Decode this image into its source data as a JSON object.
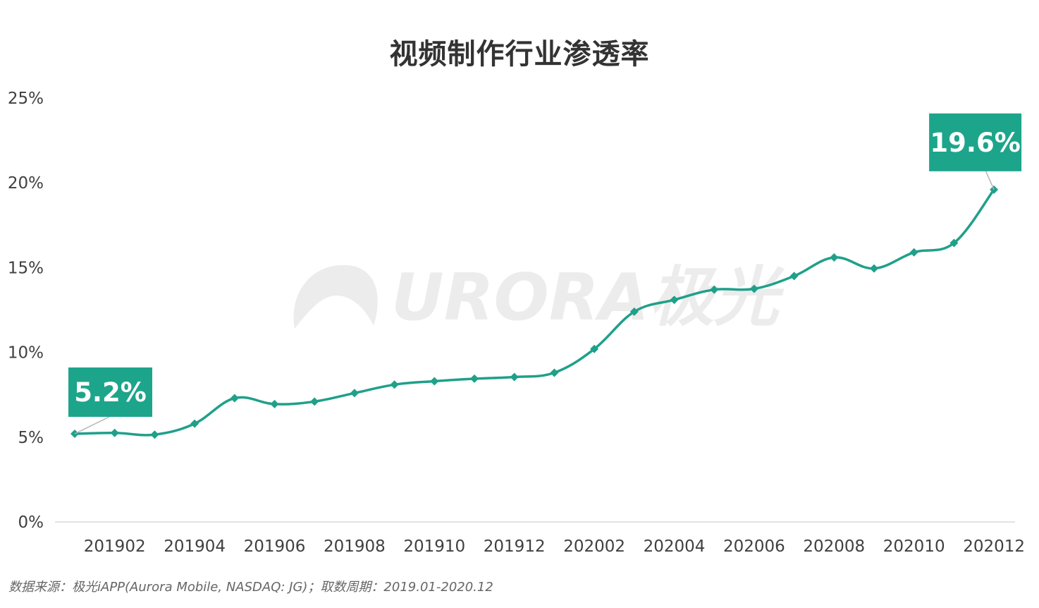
{
  "chart_data": {
    "type": "line",
    "title": "视频制作行业渗透率",
    "xlabel": "",
    "ylabel": "",
    "ylim": [
      0,
      25
    ],
    "yticks": [
      "0%",
      "5%",
      "10%",
      "15%",
      "20%",
      "25%"
    ],
    "x": [
      "201901",
      "201902",
      "201903",
      "201904",
      "201905",
      "201906",
      "201907",
      "201908",
      "201909",
      "201910",
      "201911",
      "201912",
      "202001",
      "202002",
      "202003",
      "202004",
      "202005",
      "202006",
      "202007",
      "202008",
      "202009",
      "202010",
      "202011",
      "202012"
    ],
    "xtick_labels": [
      "201902",
      "201904",
      "201906",
      "201908",
      "201910",
      "201912",
      "202002",
      "202004",
      "202006",
      "202008",
      "202010",
      "202012"
    ],
    "series": [
      {
        "values": [
          5.2,
          5.25,
          5.15,
          5.8,
          7.3,
          6.95,
          7.1,
          7.6,
          8.1,
          8.3,
          8.45,
          8.55,
          8.8,
          10.2,
          12.4,
          13.1,
          13.7,
          13.75,
          14.5,
          15.6,
          14.95,
          15.9,
          16.45,
          19.6
        ],
        "color": "#1fa08a"
      }
    ],
    "annotations": [
      {
        "label": "5.2%",
        "index": 0
      },
      {
        "label": "19.6%",
        "index": 23
      }
    ],
    "grid": false,
    "legend": "none"
  },
  "watermark": {
    "text": "URORA极光"
  },
  "source": "数据来源：极光iAPP(Aurora Mobile, NASDAQ: JG)；取数周期：2019.01-2020.12",
  "colors": {
    "line": "#1fa08a",
    "callout": "#1da58b",
    "axis": "#d9d9d9",
    "watermark": "#ececec"
  }
}
